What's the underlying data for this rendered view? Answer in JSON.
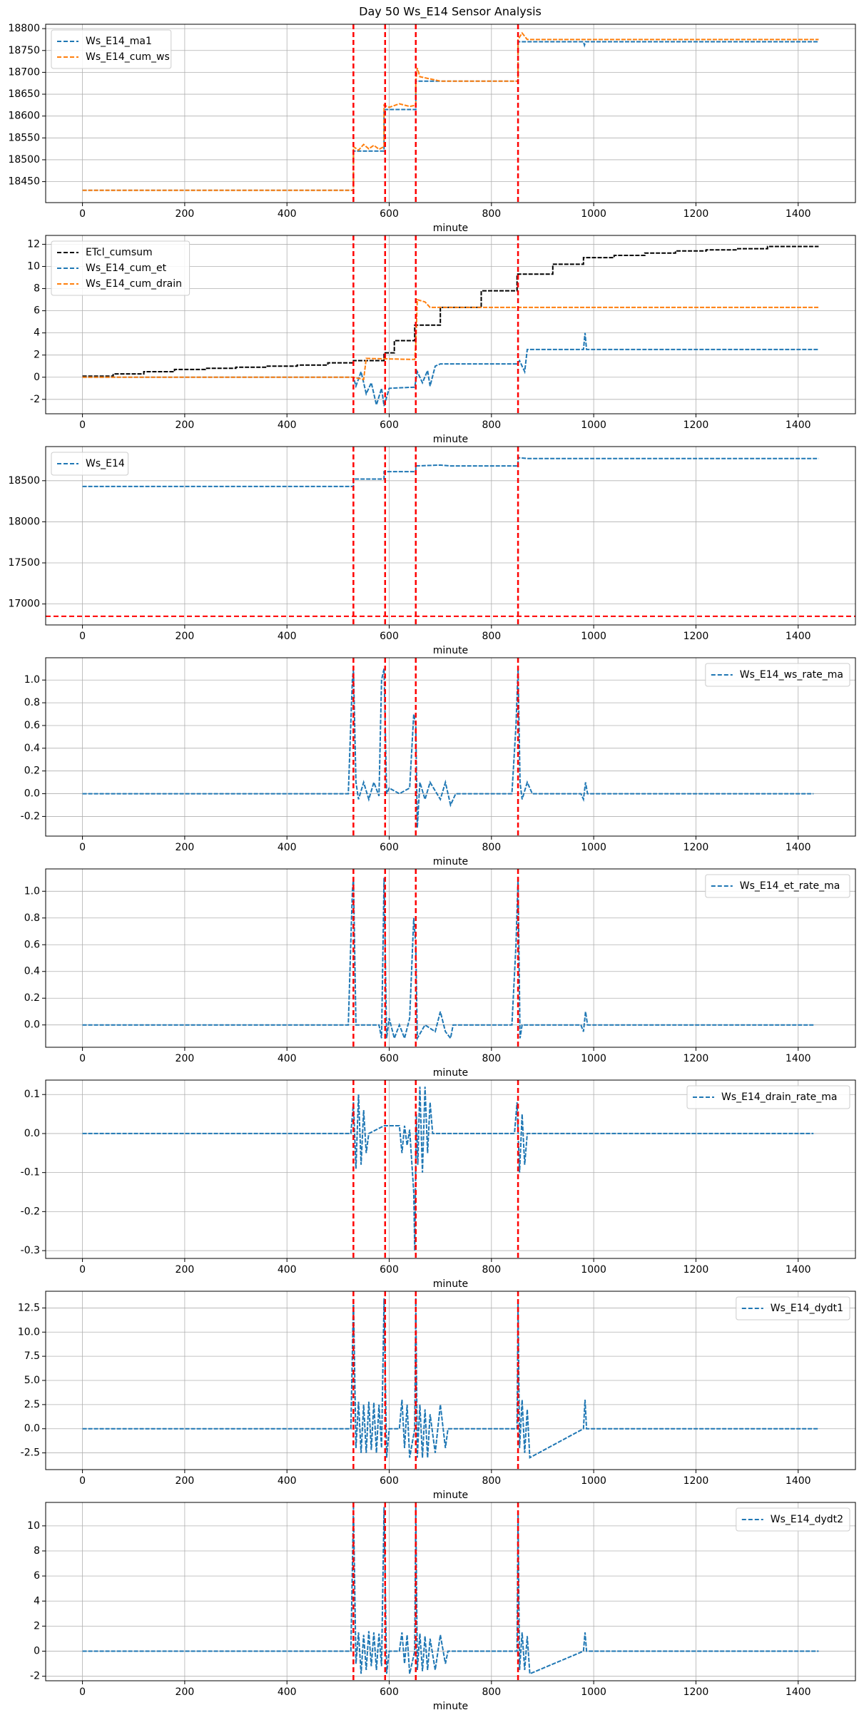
{
  "suptitle": "Day 50 Ws_E14 Sensor Analysis",
  "chart_data": [
    {
      "type": "line",
      "xlabel": "minute",
      "xlim": [
        -72,
        1512
      ],
      "xticks": [
        0,
        200,
        400,
        600,
        800,
        1000,
        1200,
        1400
      ],
      "ylim": [
        18402,
        18810
      ],
      "yticks": [
        18450,
        18500,
        18550,
        18600,
        18650,
        18700,
        18750,
        18800
      ],
      "grid": true,
      "legend": "upper left",
      "vlines": {
        "values": [
          530,
          592,
          652,
          852
        ],
        "color": "red"
      },
      "series": [
        {
          "name": "Ws_E14_ma1",
          "color": "#1f77b4",
          "x": [
            0,
            530,
            530,
            590,
            590,
            652,
            652,
            852,
            852,
            980,
            982,
            984,
            1440
          ],
          "values": [
            18430,
            18430,
            18520,
            18520,
            18615,
            18615,
            18680,
            18680,
            18770,
            18770,
            18762,
            18770,
            18770
          ]
        },
        {
          "name": "Ws_E14_cum_ws",
          "color": "#ff7f0e",
          "x": [
            0,
            530,
            530,
            540,
            550,
            560,
            570,
            580,
            590,
            590,
            600,
            620,
            640,
            652,
            652,
            655,
            660,
            680,
            700,
            852,
            852,
            860,
            870,
            1440
          ],
          "values": [
            18430,
            18430,
            18530,
            18522,
            18535,
            18525,
            18533,
            18524,
            18530,
            18625,
            18620,
            18628,
            18622,
            18625,
            18680,
            18710,
            18690,
            18685,
            18680,
            18680,
            18775,
            18790,
            18775,
            18775
          ]
        }
      ]
    },
    {
      "type": "line",
      "xlabel": "minute",
      "xlim": [
        -72,
        1512
      ],
      "xticks": [
        0,
        200,
        400,
        600,
        800,
        1000,
        1200,
        1400
      ],
      "ylim": [
        -3.3,
        12.8
      ],
      "yticks": [
        -2,
        0,
        2,
        4,
        6,
        8,
        10,
        12
      ],
      "grid": true,
      "legend": "upper left",
      "vlines": {
        "values": [
          530,
          592,
          652,
          852
        ],
        "color": "red"
      },
      "series": [
        {
          "name": "ETcl_cumsum",
          "color": "#000000",
          "x": [
            0,
            60,
            60,
            120,
            120,
            180,
            180,
            240,
            240,
            300,
            300,
            360,
            360,
            420,
            420,
            480,
            480,
            530,
            530,
            590,
            590,
            610,
            610,
            650,
            650,
            700,
            700,
            780,
            780,
            850,
            850,
            920,
            920,
            980,
            980,
            1040,
            1040,
            1100,
            1100,
            1160,
            1160,
            1220,
            1220,
            1280,
            1280,
            1340,
            1340,
            1440
          ],
          "values": [
            0.1,
            0.1,
            0.3,
            0.3,
            0.5,
            0.5,
            0.7,
            0.7,
            0.8,
            0.8,
            0.9,
            0.9,
            1.0,
            1.0,
            1.1,
            1.1,
            1.3,
            1.3,
            1.5,
            1.5,
            2.2,
            2.2,
            3.3,
            3.3,
            4.7,
            4.7,
            6.3,
            6.3,
            7.8,
            7.8,
            9.3,
            9.3,
            10.2,
            10.2,
            10.8,
            10.8,
            11.0,
            11.0,
            11.2,
            11.2,
            11.4,
            11.4,
            11.5,
            11.5,
            11.6,
            11.6,
            11.8,
            11.8
          ]
        },
        {
          "name": "Ws_E14_cum_et",
          "color": "#1f77b4",
          "x": [
            0,
            530,
            535,
            545,
            555,
            565,
            575,
            585,
            590,
            600,
            650,
            655,
            665,
            675,
            680,
            690,
            700,
            850,
            855,
            865,
            870,
            980,
            983,
            986,
            1440
          ],
          "values": [
            0,
            0,
            -0.8,
            0.5,
            -1.5,
            -0.5,
            -2.5,
            -1,
            -2.6,
            -1,
            -0.9,
            0.5,
            -0.5,
            0.6,
            -0.8,
            1.0,
            1.2,
            1.2,
            1.5,
            0.5,
            2.5,
            2.5,
            4.0,
            2.5,
            2.5
          ]
        },
        {
          "name": "Ws_E14_cum_drain",
          "color": "#ff7f0e",
          "x": [
            0,
            530,
            550,
            555,
            650,
            652,
            655,
            670,
            680,
            700,
            1440
          ],
          "values": [
            0,
            0,
            -0.2,
            1.7,
            1.6,
            3.0,
            7.0,
            6.8,
            6.3,
            6.3,
            6.3
          ]
        }
      ]
    },
    {
      "type": "line",
      "xlabel": "minute",
      "xlim": [
        -72,
        1512
      ],
      "xticks": [
        0,
        200,
        400,
        600,
        800,
        1000,
        1200,
        1400
      ],
      "ylim": [
        16745,
        18915
      ],
      "yticks": [
        17000,
        17500,
        18000,
        18500
      ],
      "grid": true,
      "legend": "upper left",
      "vlines": {
        "values": [
          530,
          592,
          652,
          852
        ],
        "color": "red"
      },
      "hlines": {
        "values": [
          16850
        ],
        "color": "red"
      },
      "series": [
        {
          "name": "Ws_E14",
          "color": "#1f77b4",
          "x": [
            0,
            530,
            530,
            590,
            590,
            652,
            652,
            700,
            720,
            852,
            852,
            870,
            1440
          ],
          "values": [
            18430,
            18430,
            18520,
            18520,
            18610,
            18610,
            18680,
            18690,
            18680,
            18680,
            18780,
            18770,
            18770
          ]
        }
      ]
    },
    {
      "type": "line",
      "xlabel": "minute",
      "xlim": [
        -72,
        1512
      ],
      "xticks": [
        0,
        200,
        400,
        600,
        800,
        1000,
        1200,
        1400
      ],
      "ylim": [
        -0.373,
        1.196
      ],
      "yticks": [
        -0.2,
        {
          "value": 0,
          "label": "0.0"
        },
        0.2,
        0.4,
        0.6,
        0.8,
        {
          "value": 1,
          "label": "1.0"
        }
      ],
      "grid": true,
      "legend": "upper right",
      "vlines": {
        "values": [
          530,
          592,
          652,
          852
        ],
        "color": "red"
      },
      "series": [
        {
          "name": "Ws_E14_ws_rate_ma",
          "color": "#1f77b4",
          "x": [
            0,
            520,
            528,
            530,
            535,
            540,
            550,
            560,
            570,
            580,
            585,
            590,
            595,
            600,
            620,
            640,
            648,
            652,
            655,
            660,
            670,
            680,
            700,
            710,
            720,
            730,
            840,
            848,
            852,
            856,
            860,
            870,
            880,
            975,
            980,
            984,
            988,
            1430
          ],
          "values": [
            0,
            0,
            1.0,
            1.1,
            0.1,
            -0.05,
            0.1,
            -0.05,
            0.1,
            -0.02,
            1.0,
            1.1,
            0,
            0.05,
            0,
            0.05,
            0.7,
            0.6,
            -0.3,
            0.1,
            -0.05,
            0.1,
            -0.05,
            0.1,
            -0.1,
            0,
            0,
            0.6,
            1.1,
            0.1,
            -0.05,
            0.1,
            0,
            0,
            -0.05,
            0.1,
            0,
            0
          ]
        }
      ]
    },
    {
      "type": "line",
      "xlabel": "minute",
      "xlim": [
        -72,
        1512
      ],
      "xticks": [
        0,
        200,
        400,
        600,
        800,
        1000,
        1200,
        1400
      ],
      "ylim": [
        -0.167,
        1.167
      ],
      "yticks": [
        {
          "value": 0,
          "label": "0.0"
        },
        0.2,
        0.4,
        0.6,
        0.8,
        {
          "value": 1,
          "label": "1.0"
        }
      ],
      "grid": true,
      "legend": "upper right",
      "vlines": {
        "values": [
          530,
          592,
          652,
          852
        ],
        "color": "red"
      },
      "series": [
        {
          "name": "Ws_E14_et_rate_ma",
          "color": "#1f77b4",
          "x": [
            0,
            520,
            528,
            530,
            535,
            580,
            585,
            590,
            595,
            600,
            610,
            620,
            630,
            640,
            648,
            652,
            655,
            670,
            690,
            700,
            710,
            720,
            725,
            840,
            848,
            852,
            856,
            860,
            975,
            980,
            984,
            988,
            1430
          ],
          "values": [
            0,
            0,
            1.0,
            1.1,
            0,
            0,
            -0.1,
            1.1,
            -0.1,
            0.05,
            -0.1,
            0,
            -0.1,
            0.05,
            0.8,
            0.6,
            -0.1,
            0,
            -0.05,
            0.1,
            -0.05,
            -0.1,
            0,
            0,
            0.6,
            1.1,
            -0.1,
            0,
            0,
            -0.05,
            0.1,
            0,
            0
          ]
        }
      ]
    },
    {
      "type": "line",
      "xlabel": "minute",
      "xlim": [
        -72,
        1512
      ],
      "xticks": [
        0,
        200,
        400,
        600,
        800,
        1000,
        1200,
        1400
      ],
      "ylim": [
        -0.32,
        0.137
      ],
      "yticks": [
        -0.3,
        -0.2,
        -0.1,
        {
          "value": 0,
          "label": "0.0"
        },
        0.1
      ],
      "grid": true,
      "legend": "upper right",
      "vlines": {
        "values": [
          530,
          592,
          652,
          852
        ],
        "color": "red"
      },
      "series": [
        {
          "name": "Ws_E14_drain_rate_ma",
          "color": "#1f77b4",
          "x": [
            0,
            525,
            530,
            535,
            540,
            545,
            550,
            555,
            560,
            590,
            620,
            625,
            630,
            635,
            640,
            648,
            650,
            653,
            656,
            660,
            665,
            670,
            675,
            680,
            685,
            700,
            845,
            850,
            855,
            860,
            865,
            870,
            1430
          ],
          "values": [
            0,
            0,
            0.08,
            -0.09,
            0.1,
            -0.08,
            0.06,
            -0.05,
            0,
            0.02,
            0.02,
            -0.05,
            0.02,
            -0.03,
            0.01,
            -0.15,
            -0.3,
            0.05,
            -0.08,
            0.12,
            -0.1,
            0.12,
            -0.05,
            0.08,
            0,
            0,
            0,
            0.08,
            -0.1,
            0.05,
            -0.08,
            0,
            0
          ]
        }
      ]
    },
    {
      "type": "line",
      "xlabel": "minute",
      "xlim": [
        -72,
        1512
      ],
      "xticks": [
        0,
        200,
        400,
        600,
        800,
        1000,
        1200,
        1400
      ],
      "ylim": [
        -4.23,
        14.23
      ],
      "yticks": [
        -2.5,
        {
          "value": 0,
          "label": "0.0"
        },
        2.5,
        {
          "value": 5,
          "label": "5.0"
        },
        7.5,
        {
          "value": 10,
          "label": "10.0"
        },
        12.5
      ],
      "grid": true,
      "legend": "upper right",
      "vlines": {
        "values": [
          530,
          592,
          652,
          852
        ],
        "color": "red"
      },
      "series": [
        {
          "name": "Ws_E14_dydt1",
          "color": "#1f77b4",
          "x": [
            0,
            525,
            530,
            535,
            540,
            545,
            550,
            555,
            560,
            565,
            570,
            575,
            580,
            585,
            590,
            595,
            600,
            620,
            625,
            630,
            635,
            640,
            650,
            652,
            655,
            660,
            665,
            670,
            675,
            680,
            690,
            700,
            710,
            715,
            850,
            852,
            855,
            860,
            865,
            870,
            875,
            980,
            983,
            986,
            1440
          ],
          "values": [
            0,
            0,
            13.5,
            -2,
            2.8,
            -2.5,
            2.5,
            -2.5,
            2.8,
            -2.2,
            2.7,
            -2.5,
            2.5,
            -2,
            13.5,
            -3,
            0,
            0,
            3,
            -2,
            2.5,
            -3,
            0,
            13.5,
            -3,
            2.5,
            -3,
            2,
            -3,
            1.5,
            -2.5,
            2.5,
            -2,
            0,
            0,
            13,
            -2,
            3,
            -2.5,
            2,
            -3,
            0,
            3,
            0,
            0
          ]
        }
      ]
    },
    {
      "type": "line",
      "xlabel": "minute",
      "xlim": [
        -72,
        1512
      ],
      "xticks": [
        0,
        200,
        400,
        600,
        800,
        1000,
        1200,
        1400
      ],
      "ylim": [
        -2.36,
        11.87
      ],
      "yticks": [
        -2,
        0,
        2,
        4,
        6,
        8,
        10
      ],
      "grid": true,
      "legend": "upper right",
      "vlines": {
        "values": [
          530,
          592,
          652,
          852
        ],
        "color": "red"
      },
      "series": [
        {
          "name": "Ws_E14_dydt2",
          "color": "#1f77b4",
          "x": [
            0,
            525,
            530,
            535,
            540,
            545,
            550,
            555,
            560,
            565,
            570,
            575,
            580,
            585,
            590,
            595,
            600,
            620,
            625,
            630,
            635,
            640,
            650,
            652,
            655,
            660,
            665,
            670,
            675,
            680,
            690,
            700,
            710,
            715,
            850,
            852,
            855,
            860,
            865,
            870,
            875,
            980,
            983,
            986,
            1440
          ],
          "values": [
            0,
            0,
            11.5,
            -1,
            1.5,
            -1.8,
            1.3,
            -1.5,
            1.6,
            -1.2,
            1.5,
            -1.5,
            1.4,
            -1.2,
            11.5,
            -1.8,
            0,
            0,
            1.5,
            -1,
            1.3,
            -1.8,
            0,
            11.5,
            -1.5,
            1.4,
            -1.6,
            1.2,
            -1.5,
            1,
            -1.5,
            1.3,
            -1,
            0,
            0,
            11,
            -1.5,
            1.5,
            -1.5,
            1.2,
            -1.8,
            0,
            1.5,
            0,
            0
          ]
        }
      ]
    }
  ]
}
